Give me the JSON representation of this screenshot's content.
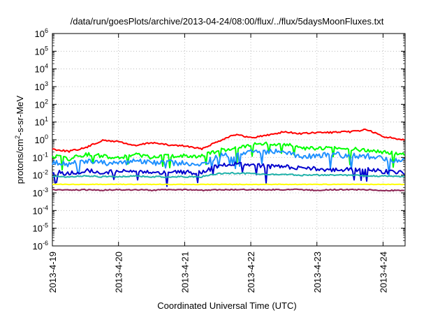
{
  "chart_data": {
    "type": "line",
    "title": "/data/run/goesPlots/archive/2013-04-24/08:00/flux/../flux/5daysMoonFluxes.txt",
    "xlabel": "Coordinated Universal Time (UTC)",
    "ylabel": {
      "base": "protons/cm",
      "sup": "2",
      "rest": "-s-sr-MeV"
    },
    "y_scale": "log",
    "ylim": [
      1e-06,
      1000000.0
    ],
    "xlim": [
      "2013-04-19",
      "2013-04-24T08:00"
    ],
    "grid": true,
    "legend": "none",
    "y_ticks": [
      {
        "value": 1e-06,
        "base": "10",
        "exp": "-6"
      },
      {
        "value": 1e-05,
        "base": "10",
        "exp": "-5"
      },
      {
        "value": 0.0001,
        "base": "10",
        "exp": "-4"
      },
      {
        "value": 0.001,
        "base": "10",
        "exp": "-3"
      },
      {
        "value": 0.01,
        "base": "10",
        "exp": "-2"
      },
      {
        "value": 0.1,
        "base": "10",
        "exp": "-1"
      },
      {
        "value": 1,
        "base": "10",
        "exp": "0"
      },
      {
        "value": 10.0,
        "base": "10",
        "exp": "1"
      },
      {
        "value": 100.0,
        "base": "10",
        "exp": "2"
      },
      {
        "value": 1000.0,
        "base": "10",
        "exp": "3"
      },
      {
        "value": 10000.0,
        "base": "10",
        "exp": "4"
      },
      {
        "value": 100000.0,
        "base": "10",
        "exp": "5"
      },
      {
        "value": 1000000.0,
        "base": "10",
        "exp": "6"
      }
    ],
    "x_ticks": [
      {
        "value": "2013-04-19",
        "label": "2013-4-19"
      },
      {
        "value": "2013-04-20",
        "label": "2013-4-20"
      },
      {
        "value": "2013-04-21",
        "label": "2013-4-21"
      },
      {
        "value": "2013-04-22",
        "label": "2013-4-22"
      },
      {
        "value": "2013-04-23",
        "label": "2013-4-23"
      },
      {
        "value": "2013-04-24",
        "label": "2013-4-24"
      }
    ],
    "series": [
      {
        "color": "#ff0000",
        "x": [
          "2013-04-19T00:00",
          "2013-04-19T06:00",
          "2013-04-19T12:00",
          "2013-04-19T18:00",
          "2013-04-20T00:00",
          "2013-04-20T06:00",
          "2013-04-20T12:00",
          "2013-04-20T18:00",
          "2013-04-21T00:00",
          "2013-04-21T06:00",
          "2013-04-21T12:00",
          "2013-04-21T18:00",
          "2013-04-22T00:00",
          "2013-04-22T06:00",
          "2013-04-22T12:00",
          "2013-04-22T18:00",
          "2013-04-23T00:00",
          "2013-04-23T06:00",
          "2013-04-23T12:00",
          "2013-04-23T18:00",
          "2013-04-24T00:00",
          "2013-04-24T08:00"
        ],
        "y": [
          0.3,
          0.22,
          0.35,
          0.9,
          0.8,
          0.45,
          0.7,
          0.5,
          0.45,
          0.3,
          0.8,
          2,
          1.3,
          1.8,
          2.8,
          2.2,
          2.5,
          2.6,
          2.8,
          3.8,
          1.5,
          1.0
        ]
      },
      {
        "color": "#00ff00",
        "x": [
          "2013-04-19T00:00",
          "2013-04-19T06:00",
          "2013-04-19T12:00",
          "2013-04-19T18:00",
          "2013-04-20T00:00",
          "2013-04-20T06:00",
          "2013-04-20T12:00",
          "2013-04-20T18:00",
          "2013-04-21T00:00",
          "2013-04-21T06:00",
          "2013-04-21T12:00",
          "2013-04-21T18:00",
          "2013-04-22T00:00",
          "2013-04-22T06:00",
          "2013-04-22T12:00",
          "2013-04-22T18:00",
          "2013-04-23T00:00",
          "2013-04-23T06:00",
          "2013-04-23T12:00",
          "2013-04-23T18:00",
          "2013-04-24T00:00",
          "2013-04-24T08:00"
        ],
        "y": [
          0.12,
          0.08,
          0.15,
          0.12,
          0.1,
          0.15,
          0.1,
          0.12,
          0.13,
          0.11,
          0.25,
          0.3,
          0.5,
          0.6,
          0.55,
          0.35,
          0.3,
          0.35,
          0.3,
          0.25,
          0.2,
          0.15
        ]
      },
      {
        "color": "#1e90ff",
        "x": [
          "2013-04-19T00:00",
          "2013-04-19T06:00",
          "2013-04-19T12:00",
          "2013-04-19T18:00",
          "2013-04-20T00:00",
          "2013-04-20T06:00",
          "2013-04-20T12:00",
          "2013-04-20T18:00",
          "2013-04-21T00:00",
          "2013-04-21T06:00",
          "2013-04-21T12:00",
          "2013-04-21T18:00",
          "2013-04-22T00:00",
          "2013-04-22T06:00",
          "2013-04-22T12:00",
          "2013-04-22T18:00",
          "2013-04-23T00:00",
          "2013-04-23T06:00",
          "2013-04-23T12:00",
          "2013-04-23T18:00",
          "2013-04-24T00:00",
          "2013-04-24T08:00"
        ],
        "y": [
          0.05,
          0.04,
          0.06,
          0.05,
          0.05,
          0.06,
          0.05,
          0.05,
          0.05,
          0.04,
          0.12,
          0.15,
          0.2,
          0.22,
          0.2,
          0.1,
          0.12,
          0.15,
          0.12,
          0.12,
          0.08,
          0.06
        ]
      },
      {
        "color": "#0000cd",
        "x": [
          "2013-04-19T00:00",
          "2013-04-19T06:00",
          "2013-04-19T12:00",
          "2013-04-19T18:00",
          "2013-04-20T00:00",
          "2013-04-20T06:00",
          "2013-04-20T12:00",
          "2013-04-20T18:00",
          "2013-04-21T00:00",
          "2013-04-21T06:00",
          "2013-04-21T12:00",
          "2013-04-21T18:00",
          "2013-04-22T00:00",
          "2013-04-22T06:00",
          "2013-04-22T12:00",
          "2013-04-22T18:00",
          "2013-04-23T00:00",
          "2013-04-23T06:00",
          "2013-04-23T12:00",
          "2013-04-23T18:00",
          "2013-04-24T00:00",
          "2013-04-24T08:00"
        ],
        "y": [
          0.015,
          0.012,
          0.018,
          0.014,
          0.016,
          0.015,
          0.014,
          0.016,
          0.015,
          0.013,
          0.035,
          0.045,
          0.04,
          0.03,
          0.03,
          0.025,
          0.022,
          0.02,
          0.02,
          0.02,
          0.016,
          0.014
        ]
      },
      {
        "color": "#20b2aa",
        "x": [
          "2013-04-19T00:00",
          "2013-04-19T06:00",
          "2013-04-19T12:00",
          "2013-04-19T18:00",
          "2013-04-20T00:00",
          "2013-04-20T06:00",
          "2013-04-20T12:00",
          "2013-04-20T18:00",
          "2013-04-21T00:00",
          "2013-04-21T06:00",
          "2013-04-21T12:00",
          "2013-04-21T18:00",
          "2013-04-22T00:00",
          "2013-04-22T06:00",
          "2013-04-22T12:00",
          "2013-04-22T18:00",
          "2013-04-23T00:00",
          "2013-04-23T06:00",
          "2013-04-23T12:00",
          "2013-04-23T18:00",
          "2013-04-24T00:00",
          "2013-04-24T08:00"
        ],
        "y": [
          0.009,
          0.008,
          0.009,
          0.008,
          0.008,
          0.009,
          0.008,
          0.008,
          0.008,
          0.008,
          0.012,
          0.013,
          0.012,
          0.011,
          0.011,
          0.01,
          0.01,
          0.01,
          0.01,
          0.009,
          0.009,
          0.008
        ]
      },
      {
        "color": "#ffff00",
        "x": [
          "2013-04-19T00:00",
          "2013-04-19T06:00",
          "2013-04-19T12:00",
          "2013-04-19T18:00",
          "2013-04-20T00:00",
          "2013-04-20T06:00",
          "2013-04-20T12:00",
          "2013-04-20T18:00",
          "2013-04-21T00:00",
          "2013-04-21T06:00",
          "2013-04-21T12:00",
          "2013-04-21T18:00",
          "2013-04-22T00:00",
          "2013-04-22T06:00",
          "2013-04-22T12:00",
          "2013-04-22T18:00",
          "2013-04-23T00:00",
          "2013-04-23T06:00",
          "2013-04-23T12:00",
          "2013-04-23T18:00",
          "2013-04-24T00:00",
          "2013-04-24T08:00"
        ],
        "y": [
          0.003,
          0.003,
          0.003,
          0.003,
          0.003,
          0.003,
          0.003,
          0.003,
          0.003,
          0.003,
          0.003,
          0.003,
          0.003,
          0.003,
          0.003,
          0.003,
          0.003,
          0.003,
          0.003,
          0.003,
          0.003,
          0.003
        ]
      },
      {
        "color": "#8b2252",
        "x": [
          "2013-04-19T00:00",
          "2013-04-19T06:00",
          "2013-04-19T12:00",
          "2013-04-19T18:00",
          "2013-04-20T00:00",
          "2013-04-20T06:00",
          "2013-04-20T12:00",
          "2013-04-20T18:00",
          "2013-04-21T00:00",
          "2013-04-21T06:00",
          "2013-04-21T12:00",
          "2013-04-21T18:00",
          "2013-04-22T00:00",
          "2013-04-22T06:00",
          "2013-04-22T12:00",
          "2013-04-22T18:00",
          "2013-04-23T00:00",
          "2013-04-23T06:00",
          "2013-04-23T12:00",
          "2013-04-23T18:00",
          "2013-04-24T00:00",
          "2013-04-24T08:00"
        ],
        "y": [
          0.0015,
          0.0014,
          0.0015,
          0.0014,
          0.0015,
          0.0015,
          0.0014,
          0.0015,
          0.0015,
          0.0014,
          0.0015,
          0.0015,
          0.0015,
          0.0015,
          0.0015,
          0.0015,
          0.0014,
          0.0015,
          0.0015,
          0.0015,
          0.0014,
          0.0013
        ]
      }
    ]
  }
}
